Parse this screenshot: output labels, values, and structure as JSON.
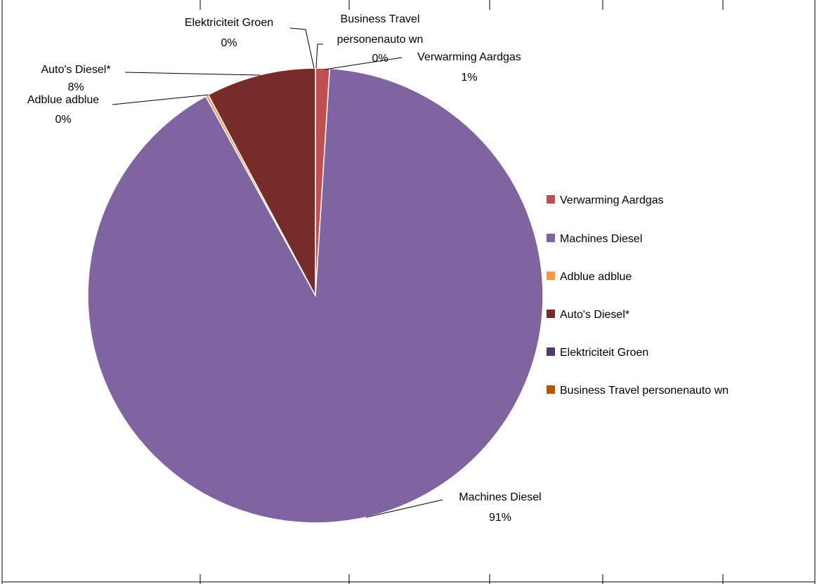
{
  "chart_data": {
    "type": "pie",
    "title": "",
    "slices": [
      {
        "name": "Verwarming Aardgas",
        "value": 1,
        "label_name": "Verwarming Aardgas",
        "label_value": "1%",
        "color": "#C0504D"
      },
      {
        "name": "Machines Diesel",
        "value": 91,
        "label_name": "Machines Diesel",
        "label_value": "91%",
        "color": "#8064A2"
      },
      {
        "name": "Adblue adblue",
        "value": 0.2,
        "label_name": "Adblue adblue",
        "label_value": "0%",
        "color": "#F79646"
      },
      {
        "name": "Auto's Diesel*",
        "value": 7.8,
        "label_name": "Auto's Diesel*",
        "label_value": "8%",
        "color": "#772C2A"
      },
      {
        "name": "Elektriciteit Groen",
        "value": 0,
        "label_name": "Elektriciteit Groen",
        "label_value": "0%",
        "color": "#4F3A6B"
      },
      {
        "name": "Business Travel personenauto wn",
        "value": 0,
        "label_name": "Business Travel personenauto wn",
        "label_value": "0%",
        "color": "#B65708"
      }
    ],
    "legend": {
      "placement": "right",
      "entries": [
        {
          "label": "Verwarming Aardgas",
          "color": "#C0504D"
        },
        {
          "label": "Machines Diesel",
          "color": "#8064A2"
        },
        {
          "label": "Adblue adblue",
          "color": "#F79646"
        },
        {
          "label": "Auto's Diesel*",
          "color": "#772C2A"
        },
        {
          "label": "Elektriciteit Groen",
          "color": "#4F3A6B"
        },
        {
          "label": "Business Travel personenauto wn",
          "color": "#B65708"
        }
      ]
    }
  }
}
